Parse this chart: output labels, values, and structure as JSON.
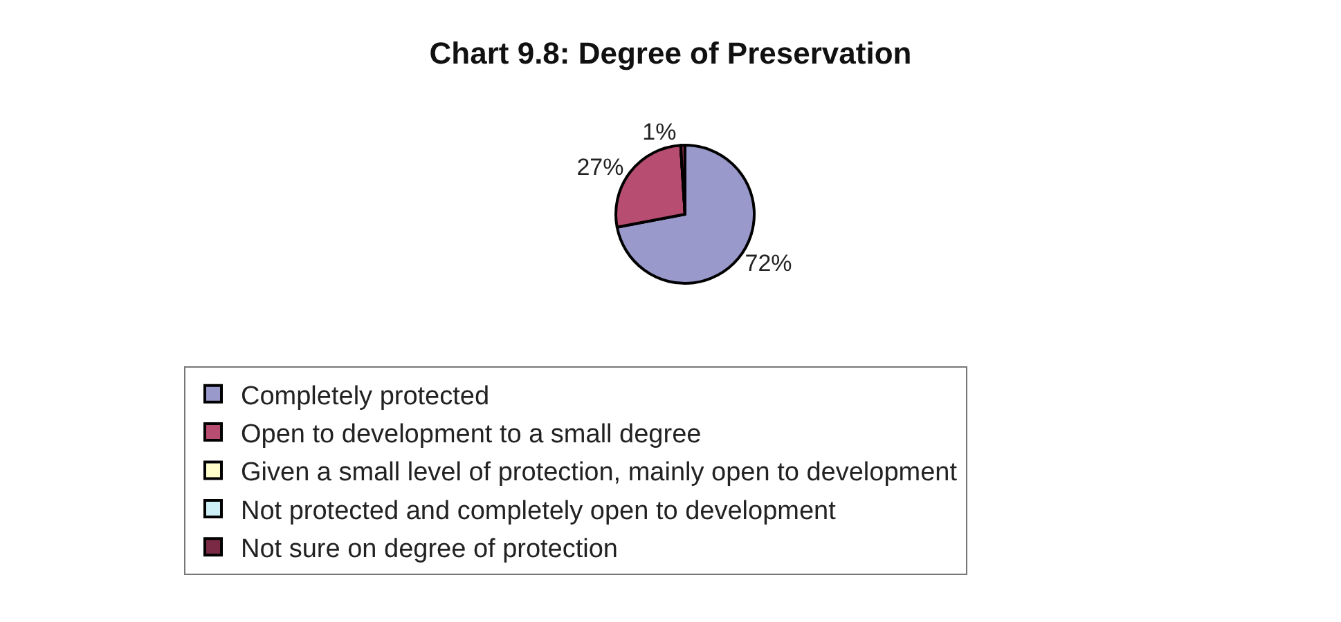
{
  "chart_data": {
    "type": "pie",
    "title": "Chart 9.8: Degree of Preservation",
    "categories": [
      "Completely protected",
      "Open to development to a small degree",
      "Given a small level of protection, mainly open to development",
      "Not protected and completely open to development",
      "Not sure on degree of protection"
    ],
    "values": [
      72,
      27,
      0,
      0,
      1
    ],
    "value_labels": [
      "72%",
      "27%",
      null,
      null,
      "1%"
    ],
    "colors": [
      "#9999cc",
      "#b84d72",
      "#ffffcc",
      "#ccf0f5",
      "#7a2a45"
    ],
    "legend": "bottom"
  }
}
